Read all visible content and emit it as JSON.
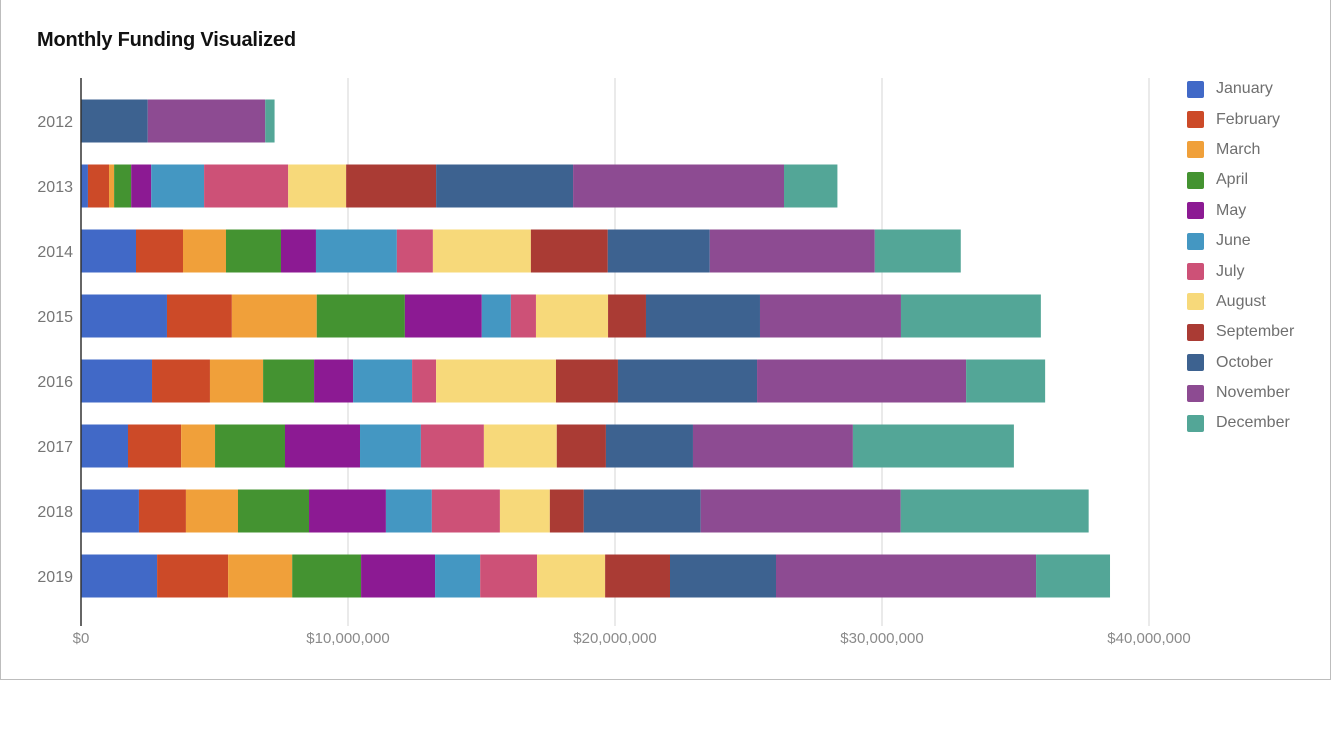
{
  "chart_data": {
    "type": "bar",
    "orientation": "horizontal",
    "stacked": true,
    "title": "Monthly Funding Visualized",
    "xlabel": "",
    "ylabel": "",
    "xlim": [
      0,
      40000000
    ],
    "x_ticks": [
      0,
      10000000,
      20000000,
      30000000,
      40000000
    ],
    "x_tick_labels": [
      "$0",
      "$10,000,000",
      "$20,000,000",
      "$30,000,000",
      "$40,000,000"
    ],
    "grid": true,
    "legend_position": "right",
    "categories": [
      "2012",
      "2013",
      "2014",
      "2015",
      "2016",
      "2017",
      "2018",
      "2019"
    ],
    "series": [
      {
        "name": "January",
        "color": "#4169c7",
        "values": [
          0,
          260000,
          2060000,
          3220000,
          2660000,
          1760000,
          2170000,
          2850000
        ]
      },
      {
        "name": "February",
        "color": "#cc4a28",
        "values": [
          0,
          790000,
          1760000,
          2430000,
          2170000,
          1990000,
          1760000,
          2660000
        ]
      },
      {
        "name": "March",
        "color": "#f0a03a",
        "values": [
          0,
          190000,
          1610000,
          3180000,
          1990000,
          1270000,
          1950000,
          2400000
        ]
      },
      {
        "name": "April",
        "color": "#449331",
        "values": [
          0,
          640000,
          2060000,
          3300000,
          1910000,
          2620000,
          2660000,
          2580000
        ]
      },
      {
        "name": "May",
        "color": "#8c1a93",
        "values": [
          0,
          750000,
          1310000,
          2880000,
          1460000,
          2810000,
          2880000,
          2770000
        ]
      },
      {
        "name": "June",
        "color": "#4497c2",
        "values": [
          0,
          1980000,
          3030000,
          1090000,
          2210000,
          2280000,
          1720000,
          1690000
        ]
      },
      {
        "name": "July",
        "color": "#cd5177",
        "values": [
          0,
          3150000,
          1350000,
          940000,
          900000,
          2360000,
          2550000,
          2130000
        ]
      },
      {
        "name": "August",
        "color": "#f7d97a",
        "values": [
          0,
          2170000,
          3670000,
          2700000,
          4490000,
          2730000,
          1870000,
          2550000
        ]
      },
      {
        "name": "September",
        "color": "#aa3b34",
        "values": [
          0,
          3370000,
          2880000,
          1420000,
          2320000,
          1840000,
          1270000,
          2430000
        ]
      },
      {
        "name": "October",
        "color": "#3d6290",
        "values": [
          2500000,
          5130000,
          3820000,
          4270000,
          5210000,
          3260000,
          4380000,
          3970000
        ]
      },
      {
        "name": "November",
        "color": "#8d4b92",
        "values": [
          4400000,
          7900000,
          6180000,
          5280000,
          7830000,
          5990000,
          7490000,
          9740000
        ]
      },
      {
        "name": "December",
        "color": "#53a697",
        "values": [
          350000,
          2000000,
          3220000,
          5240000,
          2960000,
          6030000,
          7040000,
          2770000
        ]
      }
    ]
  }
}
